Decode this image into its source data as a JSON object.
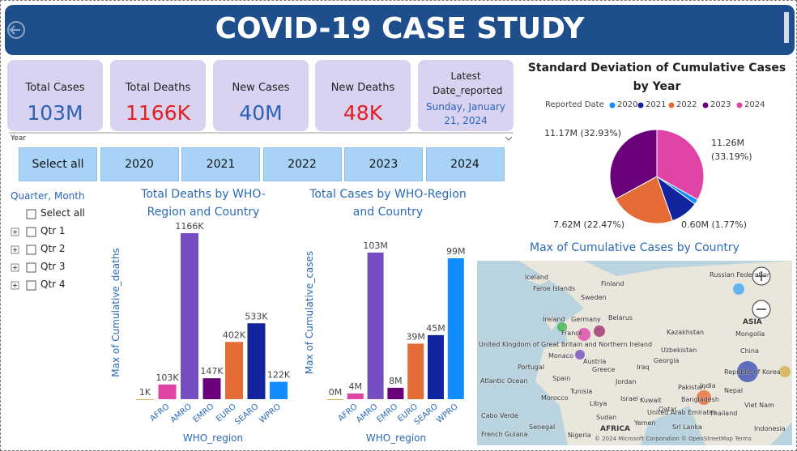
{
  "header": {
    "title": "COVID-19 CASE STUDY"
  },
  "cards": [
    {
      "label": "Total Cases",
      "value": "103M"
    },
    {
      "label": "Total Deaths",
      "value": "1166K"
    },
    {
      "label": "New Cases",
      "value": "40M"
    },
    {
      "label": "New Deaths",
      "value": "48K"
    },
    {
      "label": "Latest Date_reported",
      "value": "Sunday, January 21, 2024"
    }
  ],
  "year_slicer": {
    "title": "Year",
    "options": [
      "Select all",
      "2020",
      "2021",
      "2022",
      "2023",
      "2024"
    ]
  },
  "quarter_slicer": {
    "title": "Quarter, Month",
    "options": [
      "Select all",
      "Qtr 1",
      "Qtr 2",
      "Qtr 3",
      "Qtr 4"
    ]
  },
  "chart_data": [
    {
      "type": "bar",
      "title": "Total Deaths by WHO-Region and Country",
      "x_label": "WHO_region",
      "y_label": "Max of Cumulative_deaths",
      "categories": [
        null,
        "AFRO",
        "AMRO",
        "EMRO",
        "EURO",
        "SEARO",
        "WPRO"
      ],
      "values": [
        1,
        103,
        1166,
        147,
        402,
        533,
        122
      ],
      "value_labels": [
        "1K",
        "103K",
        "1166K",
        "147K",
        "402K",
        "533K",
        "122K"
      ],
      "colors": [
        "#d4b04a",
        "#e044a7",
        "#744ec2",
        "#6b007b",
        "#e66c37",
        "#12239e",
        "#118dff"
      ],
      "ylim": [
        0,
        1200
      ]
    },
    {
      "type": "bar",
      "title": "Total Cases by WHO-Region and Country",
      "x_label": "WHO_region",
      "y_label": "Max of Cumulative_cases",
      "categories": [
        null,
        "AFRO",
        "AMRO",
        "EMRO",
        "EURO",
        "SEARO",
        "WPRO"
      ],
      "values": [
        0,
        4,
        103,
        8,
        39,
        45,
        99
      ],
      "value_labels": [
        "0M",
        "4M",
        "103M",
        "8M",
        "39M",
        "45M",
        "99M"
      ],
      "colors": [
        "#d4b04a",
        "#e044a7",
        "#744ec2",
        "#6b007b",
        "#e66c37",
        "#12239e",
        "#118dff"
      ],
      "ylim": [
        0,
        120
      ]
    },
    {
      "type": "pie",
      "title": "Standard Deviation of Cumulative Cases by Year",
      "legend_title": "Reported Date",
      "series": [
        {
          "name": "2020",
          "color": "#118dff",
          "values": [
            0.6
          ]
        },
        {
          "name": "2021",
          "color": "#12239e",
          "values": [
            3.27
          ]
        },
        {
          "name": "2022",
          "color": "#e66c37",
          "values": [
            7.62
          ]
        },
        {
          "name": "2023",
          "color": "#6b007b",
          "values": [
            11.17
          ]
        },
        {
          "name": "2024",
          "color": "#e044a7",
          "values": [
            11.26
          ]
        }
      ],
      "value_labels": [
        "0.60M (1.77%)",
        null,
        "7.62M (22.47%)",
        "11.17M (32.93%)",
        "11.26M (33.19%)"
      ]
    },
    {
      "type": "map",
      "title": "Max of Cumulative Cases by Country",
      "place_labels": [
        "Iceland",
        "Faroe Islands",
        "Finland",
        "Sweden",
        "Russian Federation",
        "Ireland",
        "Germany",
        "Belarus",
        "France",
        "Kazakhstan",
        "Mongolia",
        "United Kingdom of Great Britain and Northern Ireland",
        "Uzbekistan",
        "Portugal",
        "Monaco",
        "Austria",
        "Georgia",
        "Greece",
        "Iraq",
        "Republic of Korea",
        "Atlantic Ocean",
        "Spain",
        "Tunisia",
        "Jordan",
        "Pakistan",
        "India",
        "China",
        "ASIA",
        "Nepal",
        "Morocco",
        "Israel",
        "Kuwait",
        "Bangladesh",
        "Libya",
        "Qatar",
        "United Arab Emirates",
        "Cabo Verde",
        "Sudan",
        "Thailand",
        "Viet Nam",
        "Senegal",
        "Yemen",
        "Sri Lanka",
        "AFRICA",
        "Indonesia",
        "French Guiana",
        "Nigeria"
      ],
      "attribution": "© 2024 Microsoft Corporation © OpenStreetMap Terms"
    }
  ]
}
